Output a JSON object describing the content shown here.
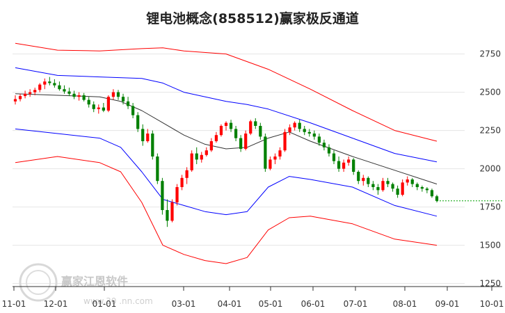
{
  "chart_data": {
    "type": "candlestick",
    "title": "锂电池概念(858512)赢家极反通道",
    "y_ticks": [
      2750,
      2500,
      2250,
      2000,
      1750,
      1500,
      1250
    ],
    "ylim": [
      1230,
      2830
    ],
    "x_labels": [
      "11-01",
      "12-01",
      "01-01",
      "03-01",
      "04-01",
      "05-01",
      "06-01",
      "07-01",
      "08-01",
      "09-01",
      "10-01"
    ],
    "grid": "horizontal",
    "colors": {
      "outer_band": "#ff0000",
      "inner_band": "#0000ff",
      "middle_line": "#333333",
      "up_candle": "#ff0000",
      "down_candle": "#008000",
      "last_price_line": "#00a000"
    },
    "candles": [
      {
        "o": 2440,
        "h": 2480,
        "l": 2420,
        "c": 2455
      },
      {
        "o": 2455,
        "h": 2490,
        "l": 2440,
        "c": 2475
      },
      {
        "o": 2475,
        "h": 2510,
        "l": 2460,
        "c": 2490
      },
      {
        "o": 2490,
        "h": 2520,
        "l": 2470,
        "c": 2500
      },
      {
        "o": 2500,
        "h": 2530,
        "l": 2480,
        "c": 2515
      },
      {
        "o": 2515,
        "h": 2560,
        "l": 2500,
        "c": 2550
      },
      {
        "o": 2550,
        "h": 2590,
        "l": 2520,
        "c": 2570
      },
      {
        "o": 2570,
        "h": 2600,
        "l": 2545,
        "c": 2560
      },
      {
        "o": 2560,
        "h": 2585,
        "l": 2530,
        "c": 2545
      },
      {
        "o": 2545,
        "h": 2570,
        "l": 2510,
        "c": 2520
      },
      {
        "o": 2520,
        "h": 2545,
        "l": 2490,
        "c": 2505
      },
      {
        "o": 2505,
        "h": 2530,
        "l": 2475,
        "c": 2490
      },
      {
        "o": 2490,
        "h": 2510,
        "l": 2455,
        "c": 2470
      },
      {
        "o": 2470,
        "h": 2500,
        "l": 2445,
        "c": 2480
      },
      {
        "o": 2480,
        "h": 2495,
        "l": 2440,
        "c": 2450
      },
      {
        "o": 2450,
        "h": 2470,
        "l": 2400,
        "c": 2420
      },
      {
        "o": 2420,
        "h": 2440,
        "l": 2370,
        "c": 2390
      },
      {
        "o": 2390,
        "h": 2420,
        "l": 2360,
        "c": 2400
      },
      {
        "o": 2400,
        "h": 2430,
        "l": 2370,
        "c": 2380
      },
      {
        "o": 2380,
        "h": 2480,
        "l": 2370,
        "c": 2470
      },
      {
        "o": 2470,
        "h": 2520,
        "l": 2450,
        "c": 2500
      },
      {
        "o": 2500,
        "h": 2515,
        "l": 2450,
        "c": 2470
      },
      {
        "o": 2470,
        "h": 2490,
        "l": 2420,
        "c": 2440
      },
      {
        "o": 2440,
        "h": 2470,
        "l": 2390,
        "c": 2410
      },
      {
        "o": 2410,
        "h": 2430,
        "l": 2330,
        "c": 2350
      },
      {
        "o": 2350,
        "h": 2370,
        "l": 2240,
        "c": 2260
      },
      {
        "o": 2260,
        "h": 2290,
        "l": 2150,
        "c": 2180
      },
      {
        "o": 2180,
        "h": 2260,
        "l": 2170,
        "c": 2230
      },
      {
        "o": 2230,
        "h": 2250,
        "l": 2060,
        "c": 2080
      },
      {
        "o": 2080,
        "h": 2100,
        "l": 1900,
        "c": 1920
      },
      {
        "o": 1920,
        "h": 1940,
        "l": 1700,
        "c": 1730
      },
      {
        "o": 1730,
        "h": 1800,
        "l": 1620,
        "c": 1660
      },
      {
        "o": 1660,
        "h": 1800,
        "l": 1650,
        "c": 1780
      },
      {
        "o": 1780,
        "h": 1900,
        "l": 1760,
        "c": 1880
      },
      {
        "o": 1880,
        "h": 1960,
        "l": 1860,
        "c": 1940
      },
      {
        "o": 1940,
        "h": 2010,
        "l": 1900,
        "c": 1990
      },
      {
        "o": 1990,
        "h": 2120,
        "l": 1980,
        "c": 2100
      },
      {
        "o": 2100,
        "h": 2140,
        "l": 2030,
        "c": 2060
      },
      {
        "o": 2060,
        "h": 2110,
        "l": 2040,
        "c": 2090
      },
      {
        "o": 2090,
        "h": 2140,
        "l": 2080,
        "c": 2120
      },
      {
        "o": 2120,
        "h": 2200,
        "l": 2110,
        "c": 2180
      },
      {
        "o": 2180,
        "h": 2240,
        "l": 2170,
        "c": 2220
      },
      {
        "o": 2220,
        "h": 2290,
        "l": 2210,
        "c": 2280
      },
      {
        "o": 2280,
        "h": 2310,
        "l": 2250,
        "c": 2300
      },
      {
        "o": 2300,
        "h": 2320,
        "l": 2240,
        "c": 2260
      },
      {
        "o": 2260,
        "h": 2280,
        "l": 2180,
        "c": 2200
      },
      {
        "o": 2200,
        "h": 2220,
        "l": 2110,
        "c": 2130
      },
      {
        "o": 2130,
        "h": 2250,
        "l": 2120,
        "c": 2230
      },
      {
        "o": 2230,
        "h": 2320,
        "l": 2220,
        "c": 2310
      },
      {
        "o": 2310,
        "h": 2330,
        "l": 2260,
        "c": 2280
      },
      {
        "o": 2280,
        "h": 2300,
        "l": 2190,
        "c": 2210
      },
      {
        "o": 2210,
        "h": 2230,
        "l": 1980,
        "c": 2000
      },
      {
        "o": 2000,
        "h": 2080,
        "l": 1990,
        "c": 2060
      },
      {
        "o": 2060,
        "h": 2100,
        "l": 2030,
        "c": 2080
      },
      {
        "o": 2080,
        "h": 2140,
        "l": 2060,
        "c": 2120
      },
      {
        "o": 2120,
        "h": 2260,
        "l": 2110,
        "c": 2240
      },
      {
        "o": 2240,
        "h": 2290,
        "l": 2220,
        "c": 2270
      },
      {
        "o": 2270,
        "h": 2310,
        "l": 2250,
        "c": 2300
      },
      {
        "o": 2300,
        "h": 2320,
        "l": 2240,
        "c": 2260
      },
      {
        "o": 2260,
        "h": 2280,
        "l": 2220,
        "c": 2240
      },
      {
        "o": 2240,
        "h": 2260,
        "l": 2210,
        "c": 2230
      },
      {
        "o": 2230,
        "h": 2250,
        "l": 2190,
        "c": 2210
      },
      {
        "o": 2210,
        "h": 2230,
        "l": 2150,
        "c": 2170
      },
      {
        "o": 2170,
        "h": 2190,
        "l": 2120,
        "c": 2140
      },
      {
        "o": 2140,
        "h": 2160,
        "l": 2080,
        "c": 2100
      },
      {
        "o": 2100,
        "h": 2120,
        "l": 2030,
        "c": 2050
      },
      {
        "o": 2050,
        "h": 2080,
        "l": 1980,
        "c": 2000
      },
      {
        "o": 2000,
        "h": 2060,
        "l": 1980,
        "c": 2040
      },
      {
        "o": 2040,
        "h": 2080,
        "l": 2020,
        "c": 2060
      },
      {
        "o": 2060,
        "h": 2070,
        "l": 1960,
        "c": 1980
      },
      {
        "o": 1980,
        "h": 1990,
        "l": 1900,
        "c": 1920
      },
      {
        "o": 1920,
        "h": 1960,
        "l": 1890,
        "c": 1940
      },
      {
        "o": 1940,
        "h": 1950,
        "l": 1880,
        "c": 1900
      },
      {
        "o": 1900,
        "h": 1920,
        "l": 1860,
        "c": 1880
      },
      {
        "o": 1880,
        "h": 1900,
        "l": 1830,
        "c": 1860
      },
      {
        "o": 1860,
        "h": 1940,
        "l": 1850,
        "c": 1920
      },
      {
        "o": 1920,
        "h": 1940,
        "l": 1880,
        "c": 1900
      },
      {
        "o": 1900,
        "h": 1910,
        "l": 1850,
        "c": 1870
      },
      {
        "o": 1870,
        "h": 1890,
        "l": 1810,
        "c": 1830
      },
      {
        "o": 1830,
        "h": 1930,
        "l": 1820,
        "c": 1910
      },
      {
        "o": 1910,
        "h": 1950,
        "l": 1890,
        "c": 1930
      },
      {
        "o": 1930,
        "h": 1940,
        "l": 1880,
        "c": 1900
      },
      {
        "o": 1900,
        "h": 1910,
        "l": 1860,
        "c": 1880
      },
      {
        "o": 1880,
        "h": 1890,
        "l": 1850,
        "c": 1870
      },
      {
        "o": 1870,
        "h": 1880,
        "l": 1840,
        "c": 1860
      },
      {
        "o": 1860,
        "h": 1870,
        "l": 1810,
        "c": 1820
      },
      {
        "o": 1820,
        "h": 1830,
        "l": 1780,
        "c": 1790
      }
    ],
    "band_outer_upper": [
      [
        0,
        2820
      ],
      [
        0.1,
        2775
      ],
      [
        0.2,
        2770
      ],
      [
        0.3,
        2785
      ],
      [
        0.35,
        2790
      ],
      [
        0.4,
        2770
      ],
      [
        0.5,
        2750
      ],
      [
        0.55,
        2700
      ],
      [
        0.6,
        2650
      ],
      [
        0.7,
        2520
      ],
      [
        0.8,
        2380
      ],
      [
        0.9,
        2250
      ],
      [
        1.0,
        2180
      ]
    ],
    "band_inner_upper": [
      [
        0,
        2660
      ],
      [
        0.1,
        2610
      ],
      [
        0.2,
        2600
      ],
      [
        0.3,
        2590
      ],
      [
        0.35,
        2560
      ],
      [
        0.4,
        2500
      ],
      [
        0.5,
        2440
      ],
      [
        0.55,
        2420
      ],
      [
        0.6,
        2390
      ],
      [
        0.7,
        2300
      ],
      [
        0.8,
        2200
      ],
      [
        0.9,
        2100
      ],
      [
        1.0,
        2045
      ]
    ],
    "middle_line": [
      [
        0,
        2490
      ],
      [
        0.1,
        2480
      ],
      [
        0.2,
        2470
      ],
      [
        0.25,
        2440
      ],
      [
        0.3,
        2380
      ],
      [
        0.35,
        2300
      ],
      [
        0.4,
        2220
      ],
      [
        0.45,
        2160
      ],
      [
        0.5,
        2130
      ],
      [
        0.55,
        2140
      ],
      [
        0.6,
        2200
      ],
      [
        0.65,
        2240
      ],
      [
        0.7,
        2180
      ],
      [
        0.8,
        2080
      ],
      [
        0.9,
        1990
      ],
      [
        1.0,
        1900
      ]
    ],
    "band_inner_lower": [
      [
        0,
        2260
      ],
      [
        0.1,
        2230
      ],
      [
        0.2,
        2200
      ],
      [
        0.25,
        2140
      ],
      [
        0.3,
        1980
      ],
      [
        0.35,
        1800
      ],
      [
        0.4,
        1760
      ],
      [
        0.45,
        1720
      ],
      [
        0.5,
        1700
      ],
      [
        0.55,
        1720
      ],
      [
        0.6,
        1880
      ],
      [
        0.65,
        1950
      ],
      [
        0.7,
        1930
      ],
      [
        0.8,
        1880
      ],
      [
        0.9,
        1760
      ],
      [
        1.0,
        1690
      ]
    ],
    "band_outer_lower": [
      [
        0,
        2040
      ],
      [
        0.1,
        2080
      ],
      [
        0.2,
        2040
      ],
      [
        0.25,
        1980
      ],
      [
        0.3,
        1780
      ],
      [
        0.35,
        1500
      ],
      [
        0.4,
        1440
      ],
      [
        0.45,
        1400
      ],
      [
        0.5,
        1380
      ],
      [
        0.55,
        1420
      ],
      [
        0.6,
        1600
      ],
      [
        0.65,
        1680
      ],
      [
        0.7,
        1690
      ],
      [
        0.8,
        1640
      ],
      [
        0.9,
        1540
      ],
      [
        1.0,
        1500
      ]
    ],
    "last_price": 1790
  },
  "watermark": {
    "brand": "赢家江恩软件",
    "site": "www.30 .nn.com"
  }
}
